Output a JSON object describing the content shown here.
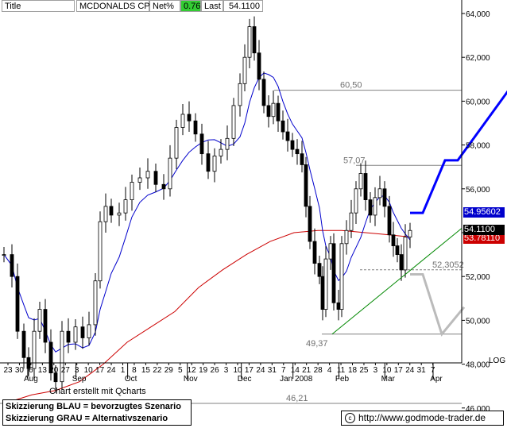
{
  "header": {
    "title": "Title",
    "symbol": "MCDONALDS CP",
    "change_label": "Net%",
    "change_value": "0.76",
    "last_label": "Last",
    "last_value": "54.1100"
  },
  "chart_data": {
    "type": "candlestick",
    "title": "MCDONALDS CP",
    "ylim": [
      46.0,
      64.0
    ],
    "y_ticks": [
      46,
      48,
      50,
      52,
      54,
      56,
      58,
      60,
      62,
      64
    ],
    "y_tick_labels": [
      "46,000",
      "48,000",
      "50,000",
      "52,000",
      "54,000",
      "56,000",
      "58,000",
      "60,000",
      "62,000",
      "64,000"
    ],
    "x_day_labels": [
      "23",
      "30",
      "6",
      "13",
      "20",
      "27",
      "3",
      "10",
      "17",
      "24",
      "1",
      "8",
      "15",
      "22",
      "29",
      "5",
      "12",
      "19",
      "26",
      "3",
      "10",
      "17",
      "24",
      "31",
      "7",
      "14",
      "21",
      "28",
      "4",
      "11",
      "18",
      "25",
      "3",
      "10",
      "17",
      "24",
      "31",
      "7"
    ],
    "x_month_labels": [
      "Aug",
      "Sep",
      "Oct",
      "Nov",
      "Dec",
      "Jan 2008",
      "Feb",
      "Mar",
      "Apr"
    ],
    "scale_label": "LOG",
    "price_tags": {
      "ma_fast": "54.95602",
      "last": "54.1100",
      "ma_slow": "53.78110"
    },
    "levels": [
      {
        "label": "60,50",
        "value": 60.5
      },
      {
        "label": "57,07",
        "value": 57.07
      },
      {
        "label": "52,3052",
        "value": 52.3052
      },
      {
        "label": "49,37",
        "value": 49.37
      },
      {
        "label": "46,21",
        "value": 46.21
      }
    ],
    "scenario_blue": [
      [
        53.9,
        54.9
      ],
      [
        54.3,
        54.9
      ],
      [
        55.0,
        57.3
      ],
      [
        55.4,
        57.3
      ],
      [
        57.0,
        60.5
      ]
    ],
    "scenario_grey": [
      [
        53.9,
        52.1
      ],
      [
        54.3,
        52.1
      ],
      [
        54.9,
        49.37
      ],
      [
        55.6,
        50.6
      ]
    ],
    "support_line": [
      [
        49.37,
        49.37
      ],
      [
        56.5,
        54.2
      ]
    ],
    "series_colors": {
      "ma_fast": "#0000cc",
      "ma_slow": "#cc0000",
      "candles": "#000000",
      "support": "#008800",
      "scenario_blue": "#0000ff",
      "scenario_grey": "#bbbbbb"
    }
  },
  "footer": {
    "created_with": "Chart erstellt mit Qcharts",
    "legend_blue": "Skizzierung BLAU = bevorzugtes Szenario",
    "legend_grey": "Skizzierung GRAU = Alternativszenario",
    "website": "http://www.godmode-trader.de"
  }
}
